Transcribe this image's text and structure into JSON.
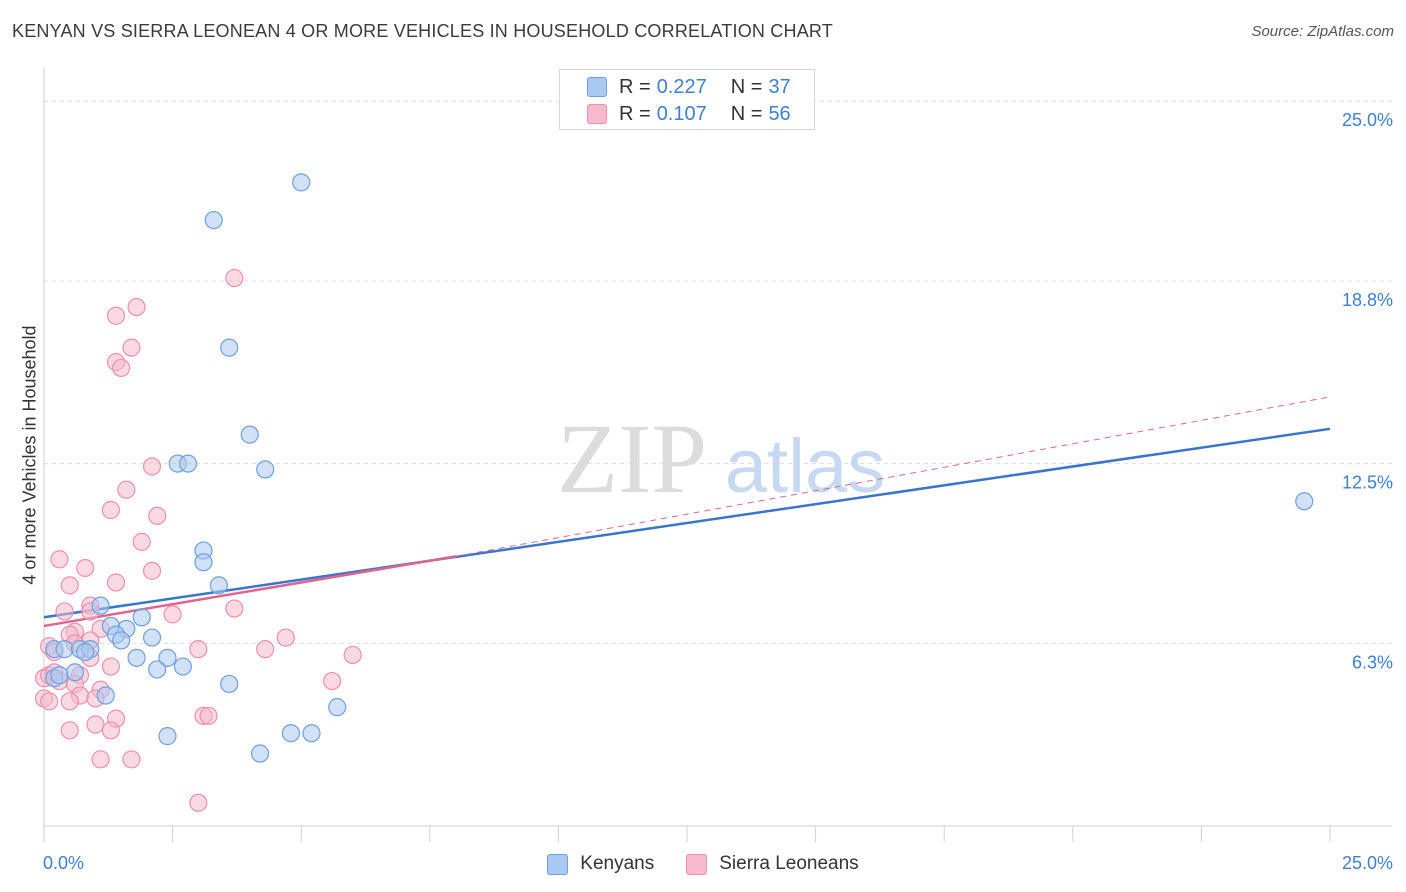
{
  "header": {
    "title": "KENYAN VS SIERRA LEONEAN 4 OR MORE VEHICLES IN HOUSEHOLD CORRELATION CHART",
    "source": "Source: ZipAtlas.com"
  },
  "watermark": {
    "zip": "ZIP",
    "atlas": "atlas"
  },
  "legend_top": {
    "rows": [
      {
        "r_label": "R =",
        "r_value": "0.227",
        "n_label": "N =",
        "n_value": "37"
      },
      {
        "r_label": "R =",
        "r_value": "0.107",
        "n_label": "N =",
        "n_value": "56"
      }
    ]
  },
  "legend_bottom": {
    "kenyans": "Kenyans",
    "sierra": "Sierra Leoneans"
  },
  "colors": {
    "kenyan_fill": "#a9c8f2",
    "kenyan_stroke": "#6f9fe0",
    "kenyan_line": "#3a74cc",
    "sierra_fill": "#f7b9cc",
    "sierra_stroke": "#ee8fae",
    "sierra_line": "#e0648e",
    "tick_label": "#3f7fd0",
    "grid": "#dcdcdc"
  },
  "chart_data": {
    "type": "scatter",
    "title": "KENYAN VS SIERRA LEONEAN 4 OR MORE VEHICLES IN HOUSEHOLD CORRELATION CHART",
    "xlabel": "",
    "ylabel": "4 or more Vehicles in Household",
    "xlim": [
      0,
      25
    ],
    "ylim": [
      0,
      25.8
    ],
    "x_tick_labels": [
      "0.0%",
      "25.0%"
    ],
    "y_ticks": [
      6.3,
      12.5,
      18.8,
      25.0
    ],
    "y_tick_labels": [
      "6.3%",
      "12.5%",
      "18.8%",
      "25.0%"
    ],
    "grid": true,
    "series": [
      {
        "name": "Kenyans",
        "r": 0.227,
        "n": 37,
        "points": [
          [
            5.0,
            22.2
          ],
          [
            3.3,
            20.9
          ],
          [
            3.6,
            16.5
          ],
          [
            4.0,
            13.5
          ],
          [
            2.6,
            12.5
          ],
          [
            2.8,
            12.5
          ],
          [
            4.3,
            12.3
          ],
          [
            24.5,
            11.2
          ],
          [
            3.1,
            9.5
          ],
          [
            3.1,
            9.1
          ],
          [
            3.4,
            8.3
          ],
          [
            1.1,
            7.6
          ],
          [
            1.9,
            7.2
          ],
          [
            1.3,
            6.9
          ],
          [
            1.6,
            6.8
          ],
          [
            2.1,
            6.5
          ],
          [
            1.4,
            6.6
          ],
          [
            1.5,
            6.4
          ],
          [
            0.2,
            6.1
          ],
          [
            0.4,
            6.1
          ],
          [
            0.7,
            6.1
          ],
          [
            0.9,
            6.1
          ],
          [
            0.8,
            6.0
          ],
          [
            1.8,
            5.8
          ],
          [
            2.4,
            5.8
          ],
          [
            2.7,
            5.5
          ],
          [
            2.2,
            5.4
          ],
          [
            0.6,
            5.3
          ],
          [
            0.2,
            5.1
          ],
          [
            3.6,
            4.9
          ],
          [
            1.2,
            4.5
          ],
          [
            5.7,
            4.1
          ],
          [
            2.4,
            3.1
          ],
          [
            4.8,
            3.2
          ],
          [
            5.2,
            3.2
          ],
          [
            4.2,
            2.5
          ],
          [
            0.3,
            5.2
          ]
        ],
        "trend": {
          "x0": 0,
          "y0": 7.2,
          "x1": 25,
          "y1": 13.7
        }
      },
      {
        "name": "Sierra Leoneans",
        "r": 0.107,
        "n": 56,
        "points": [
          [
            3.7,
            18.9
          ],
          [
            1.8,
            17.9
          ],
          [
            1.4,
            17.6
          ],
          [
            1.7,
            16.5
          ],
          [
            1.4,
            16.0
          ],
          [
            1.5,
            15.8
          ],
          [
            2.1,
            12.4
          ],
          [
            1.6,
            11.6
          ],
          [
            1.3,
            10.9
          ],
          [
            2.2,
            10.7
          ],
          [
            1.9,
            9.8
          ],
          [
            0.3,
            9.2
          ],
          [
            0.8,
            8.9
          ],
          [
            2.1,
            8.8
          ],
          [
            1.4,
            8.4
          ],
          [
            0.5,
            8.3
          ],
          [
            0.9,
            7.6
          ],
          [
            0.4,
            7.4
          ],
          [
            0.9,
            7.4
          ],
          [
            3.7,
            7.5
          ],
          [
            2.5,
            7.3
          ],
          [
            1.1,
            6.8
          ],
          [
            0.6,
            6.7
          ],
          [
            0.5,
            6.6
          ],
          [
            0.9,
            6.4
          ],
          [
            4.7,
            6.5
          ],
          [
            0.6,
            6.3
          ],
          [
            0.1,
            6.2
          ],
          [
            3.0,
            6.1
          ],
          [
            4.3,
            6.1
          ],
          [
            0.2,
            6.0
          ],
          [
            6.0,
            5.9
          ],
          [
            0.9,
            5.8
          ],
          [
            1.3,
            5.5
          ],
          [
            0.7,
            5.2
          ],
          [
            0.0,
            5.1
          ],
          [
            0.1,
            5.2
          ],
          [
            0.2,
            5.3
          ],
          [
            0.3,
            5.0
          ],
          [
            5.6,
            5.0
          ],
          [
            0.6,
            4.9
          ],
          [
            1.1,
            4.7
          ],
          [
            0.7,
            4.5
          ],
          [
            1.0,
            4.4
          ],
          [
            0.0,
            4.4
          ],
          [
            0.1,
            4.3
          ],
          [
            0.5,
            4.3
          ],
          [
            1.4,
            3.7
          ],
          [
            3.1,
            3.8
          ],
          [
            3.2,
            3.8
          ],
          [
            1.0,
            3.5
          ],
          [
            0.5,
            3.3
          ],
          [
            1.3,
            3.3
          ],
          [
            1.1,
            2.3
          ],
          [
            1.7,
            2.3
          ],
          [
            3.0,
            0.8
          ]
        ],
        "trend": {
          "x0": 0,
          "y0": 6.9,
          "x1": 8.0,
          "y1": 9.3
        },
        "trend_extension": {
          "x0": 8.0,
          "y0": 9.3,
          "x1": 25,
          "y1": 14.8
        }
      }
    ]
  }
}
